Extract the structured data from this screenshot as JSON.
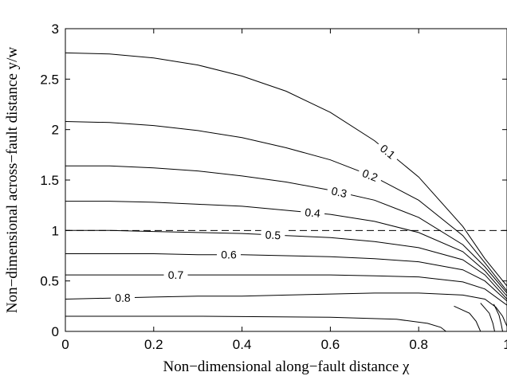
{
  "chart_data": {
    "type": "line",
    "title": "",
    "xlabel": "Non−dimensional along−fault distance χ",
    "ylabel": "Non−dimensional across−fault distance y/w",
    "xlim": [
      0,
      1
    ],
    "ylim": [
      0,
      3
    ],
    "xticks": [
      0,
      0.2,
      0.4,
      0.6,
      0.8,
      1
    ],
    "xtick_labels": [
      "0",
      "0.2",
      "0.4",
      "0.6",
      "0.8",
      "1"
    ],
    "yticks": [
      0,
      0.5,
      1,
      1.5,
      2,
      2.5,
      3
    ],
    "ytick_labels": [
      "0",
      "0.5",
      "1",
      "1.5",
      "2",
      "2.5",
      "3"
    ],
    "grid": false,
    "reference_line": {
      "y": 1,
      "style": "dashed"
    },
    "series": [
      {
        "name": "0.1",
        "label_x": 0.73,
        "x": [
          0,
          0.1,
          0.2,
          0.3,
          0.4,
          0.5,
          0.6,
          0.7,
          0.8,
          0.9,
          0.95,
          1.0
        ],
        "y": [
          2.76,
          2.75,
          2.71,
          2.64,
          2.53,
          2.38,
          2.17,
          1.89,
          1.53,
          1.04,
          0.72,
          0.45
        ]
      },
      {
        "name": "0.2",
        "label_x": 0.69,
        "x": [
          0,
          0.1,
          0.2,
          0.3,
          0.4,
          0.5,
          0.6,
          0.7,
          0.8,
          0.9,
          0.95,
          1.0
        ],
        "y": [
          2.08,
          2.07,
          2.04,
          1.99,
          1.92,
          1.82,
          1.7,
          1.53,
          1.3,
          0.95,
          0.68,
          0.4
        ]
      },
      {
        "name": "0.3",
        "label_x": 0.62,
        "x": [
          0,
          0.1,
          0.2,
          0.3,
          0.4,
          0.5,
          0.6,
          0.7,
          0.8,
          0.9,
          0.95,
          1.0
        ],
        "y": [
          1.64,
          1.64,
          1.62,
          1.59,
          1.54,
          1.48,
          1.4,
          1.3,
          1.13,
          0.86,
          0.64,
          0.38
        ]
      },
      {
        "name": "0.4",
        "label_x": 0.56,
        "x": [
          0,
          0.1,
          0.2,
          0.3,
          0.4,
          0.5,
          0.6,
          0.7,
          0.8,
          0.9,
          0.95,
          1.0
        ],
        "y": [
          1.29,
          1.29,
          1.28,
          1.26,
          1.24,
          1.2,
          1.16,
          1.09,
          0.98,
          0.79,
          0.6,
          0.35
        ]
      },
      {
        "name": "0.5",
        "label_x": 0.47,
        "x": [
          0,
          0.1,
          0.2,
          0.3,
          0.4,
          0.5,
          0.6,
          0.7,
          0.8,
          0.9,
          0.95,
          1.0
        ],
        "y": [
          1.0,
          1.0,
          0.99,
          0.98,
          0.97,
          0.95,
          0.93,
          0.89,
          0.83,
          0.71,
          0.56,
          0.32
        ]
      },
      {
        "name": "0.6",
        "label_x": 0.37,
        "x": [
          0,
          0.1,
          0.2,
          0.3,
          0.4,
          0.5,
          0.6,
          0.7,
          0.8,
          0.9,
          0.95,
          1.0
        ],
        "y": [
          0.77,
          0.77,
          0.77,
          0.76,
          0.76,
          0.75,
          0.74,
          0.72,
          0.69,
          0.61,
          0.5,
          0.3
        ]
      },
      {
        "name": "0.7",
        "label_x": 0.25,
        "x": [
          0,
          0.1,
          0.2,
          0.3,
          0.4,
          0.5,
          0.6,
          0.7,
          0.8,
          0.9,
          0.95,
          1.0
        ],
        "y": [
          0.56,
          0.56,
          0.56,
          0.56,
          0.56,
          0.56,
          0.56,
          0.55,
          0.54,
          0.49,
          0.42,
          0.26
        ]
      },
      {
        "name": "0.8",
        "label_x": 0.13,
        "x": [
          0,
          0.1,
          0.2,
          0.3,
          0.4,
          0.5,
          0.6,
          0.7,
          0.8,
          0.9,
          0.95,
          0.975,
          0.99,
          1.0
        ],
        "y": [
          0.32,
          0.33,
          0.34,
          0.35,
          0.35,
          0.36,
          0.37,
          0.38,
          0.38,
          0.36,
          0.32,
          0.24,
          0.15,
          0.05
        ]
      },
      {
        "name": "",
        "x": [
          0,
          0.3,
          0.6,
          0.75,
          0.82,
          0.85,
          0.862
        ],
        "y": [
          0.15,
          0.15,
          0.14,
          0.12,
          0.08,
          0.04,
          0.0
        ]
      },
      {
        "name": "",
        "x": [
          0.88,
          0.915,
          0.93,
          0.94
        ],
        "y": [
          0.25,
          0.18,
          0.1,
          0.0
        ]
      },
      {
        "name": "",
        "x": [
          0.94,
          0.96,
          0.968,
          0.972
        ],
        "y": [
          0.28,
          0.18,
          0.08,
          0.0
        ]
      },
      {
        "name": "",
        "x": [
          0.97,
          0.982,
          0.987,
          0.99
        ],
        "y": [
          0.27,
          0.16,
          0.07,
          0.0
        ]
      }
    ]
  }
}
